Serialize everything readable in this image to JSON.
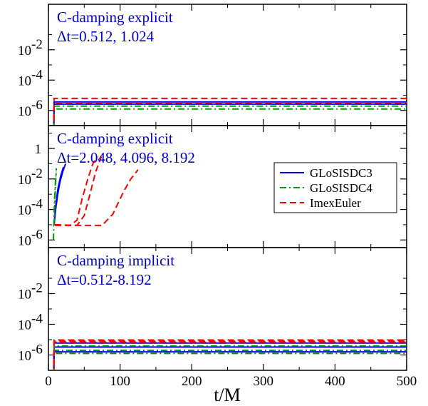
{
  "chart_data": {
    "type": "line",
    "xlabel": "t/M",
    "xlim": [
      0,
      500
    ],
    "x_ticks": [
      "0",
      "100",
      "200",
      "300",
      "400",
      "500"
    ],
    "y_scale": "log",
    "colors": {
      "GLoSISDC3": "#0000ff",
      "GLoSISDC4": "#009900",
      "ImexEuler": "#ff0000"
    },
    "legend": {
      "placement": "middle-right (middle panel)",
      "entries": [
        {
          "name": "GLoSISDC3",
          "style": "solid"
        },
        {
          "name": "GLoSISDC4",
          "style": "dash-dot"
        },
        {
          "name": "ImexEuler",
          "style": "dashed"
        }
      ]
    },
    "panels": [
      {
        "title_line1": "C-damping explicit",
        "title_line2": "Δt=0.512, 1.024",
        "ylim_log10": [
          -7,
          1
        ],
        "y_ticks": [
          {
            "exp": -6,
            "text": "10",
            "sup": "-6"
          },
          {
            "exp": -4,
            "text": "10",
            "sup": "-4"
          },
          {
            "exp": -2,
            "text": "10",
            "sup": "-2"
          }
        ],
        "series": [
          {
            "name": "GLoSISDC3",
            "style": "solid",
            "x": [
              0,
              7,
              8,
              500
            ],
            "y": [
              1e-09,
              1e-09,
              3.6e-06,
              3.6e-06
            ]
          },
          {
            "name": "GLoSISDC3",
            "style": "solid",
            "x": [
              0,
              7,
              8,
              500
            ],
            "y": [
              1e-09,
              1e-09,
              2.6e-06,
              2.6e-06
            ]
          },
          {
            "name": "GLoSISDC4",
            "style": "dash-dot",
            "x": [
              0,
              7,
              8,
              500
            ],
            "y": [
              1e-09,
              1e-09,
              1.9e-06,
              1.9e-06
            ]
          },
          {
            "name": "GLoSISDC4",
            "style": "dash-dot",
            "x": [
              0,
              7,
              8,
              500
            ],
            "y": [
              1e-09,
              1e-09,
              1.25e-06,
              1.25e-06
            ]
          },
          {
            "name": "ImexEuler",
            "style": "dashed",
            "x": [
              0,
              7,
              8,
              500
            ],
            "y": [
              1e-09,
              1e-09,
              6.2e-06,
              6.2e-06
            ]
          },
          {
            "name": "ImexEuler",
            "style": "dashed",
            "x": [
              0,
              7,
              8,
              500
            ],
            "y": [
              1e-09,
              1e-09,
              3.2e-06,
              3.2e-06
            ]
          }
        ]
      },
      {
        "title_line1": "C-damping explicit",
        "title_line2": "Δt=2.048, 4.096, 8.192",
        "ylim_log10": [
          -6.5,
          1.5
        ],
        "y_ticks": [
          {
            "exp": -6,
            "text": "10",
            "sup": "-6"
          },
          {
            "exp": -4,
            "text": "10",
            "sup": "-4"
          },
          {
            "exp": -2,
            "text": "10",
            "sup": "-2"
          },
          {
            "exp": 0,
            "text": "1",
            "sup": ""
          }
        ],
        "series": [
          {
            "name": "GLoSISDC3",
            "style": "solid",
            "x": [
              8,
              10,
              13,
              16,
              20,
              24
            ],
            "y": [
              1e-05,
              0.0001,
              0.001,
              0.006,
              0.03,
              0.1
            ]
          },
          {
            "name": "GLoSISDC3",
            "style": "solid",
            "x": [
              8,
              10,
              13,
              17,
              21
            ],
            "y": [
              1e-05,
              0.00015,
              0.002,
              0.015,
              0.06
            ]
          },
          {
            "name": "GLoSISDC4",
            "style": "dash-dot",
            "x": [
              7,
              8.5,
              10,
              11
            ],
            "y": [
              1e-06,
              0.0005,
              0.01,
              0.03
            ]
          },
          {
            "name": "GLoSISDC4",
            "style": "dash-dot",
            "x": [
              8,
              9.5,
              11
            ],
            "y": [
              1e-05,
              0.002,
              0.05
            ]
          },
          {
            "name": "ImexEuler",
            "style": "dashed",
            "x": [
              9,
              30,
              40,
              47,
              55,
              62,
              68
            ],
            "y": [
              1e-05,
              9e-06,
              2e-05,
              0.0005,
              0.01,
              0.1,
              0.3
            ]
          },
          {
            "name": "ImexEuler",
            "style": "dashed",
            "x": [
              9,
              40,
              50,
              58,
              66,
              74
            ],
            "y": [
              1e-05,
              9e-06,
              4e-05,
              0.001,
              0.03,
              0.3
            ]
          },
          {
            "name": "ImexEuler",
            "style": "dashed",
            "x": [
              9,
              40,
              75,
              90,
              105,
              115,
              125
            ],
            "y": [
              9e-06,
              9e-06,
              9e-06,
              5e-05,
              0.0015,
              0.01,
              0.04
            ]
          }
        ]
      },
      {
        "title_line1": "C-damping implicit",
        "title_line2": "Δt=0.512-8.192",
        "ylim_log10": [
          -7,
          1
        ],
        "y_ticks": [
          {
            "exp": -6,
            "text": "10",
            "sup": "-6"
          },
          {
            "exp": -4,
            "text": "10",
            "sup": "-4"
          },
          {
            "exp": -2,
            "text": "10",
            "sup": "-2"
          }
        ],
        "series": [
          {
            "name": "GLoSISDC3",
            "style": "solid",
            "x": [
              0,
              7,
              8,
              500
            ],
            "y": [
              1e-09,
              1e-09,
              6e-06,
              6e-06
            ]
          },
          {
            "name": "GLoSISDC3",
            "style": "solid",
            "x": [
              0,
              7,
              8,
              500
            ],
            "y": [
              1e-09,
              1e-09,
              3.3e-06,
              3.3e-06
            ]
          },
          {
            "name": "GLoSISDC3",
            "style": "solid",
            "x": [
              0,
              7,
              8,
              500
            ],
            "y": [
              1e-09,
              1e-09,
              1.6e-06,
              1.6e-06
            ]
          },
          {
            "name": "GLoSISDC4",
            "style": "dash-dot",
            "x": [
              0,
              7,
              8,
              500
            ],
            "y": [
              1e-09,
              1e-09,
              3.9e-06,
              3.9e-06
            ]
          },
          {
            "name": "GLoSISDC4",
            "style": "dash-dot",
            "x": [
              0,
              7,
              8,
              500
            ],
            "y": [
              1e-09,
              1e-09,
              2e-06,
              2e-06
            ]
          },
          {
            "name": "GLoSISDC4",
            "style": "dash-dot",
            "x": [
              0,
              7,
              8,
              500
            ],
            "y": [
              1e-09,
              1e-09,
              1.25e-06,
              1.25e-06
            ]
          },
          {
            "name": "ImexEuler",
            "style": "dashed",
            "x": [
              0,
              7,
              8,
              500
            ],
            "y": [
              1e-09,
              1e-09,
              9.5e-06,
              9.5e-06
            ]
          },
          {
            "name": "ImexEuler",
            "style": "dashed",
            "x": [
              0,
              7,
              8,
              500
            ],
            "y": [
              1e-09,
              1e-09,
              8e-06,
              8e-06
            ]
          },
          {
            "name": "ImexEuler",
            "style": "dashed",
            "x": [
              0,
              7,
              8,
              500
            ],
            "y": [
              1e-09,
              1e-09,
              6.8e-06,
              6.8e-06
            ]
          }
        ]
      }
    ]
  }
}
